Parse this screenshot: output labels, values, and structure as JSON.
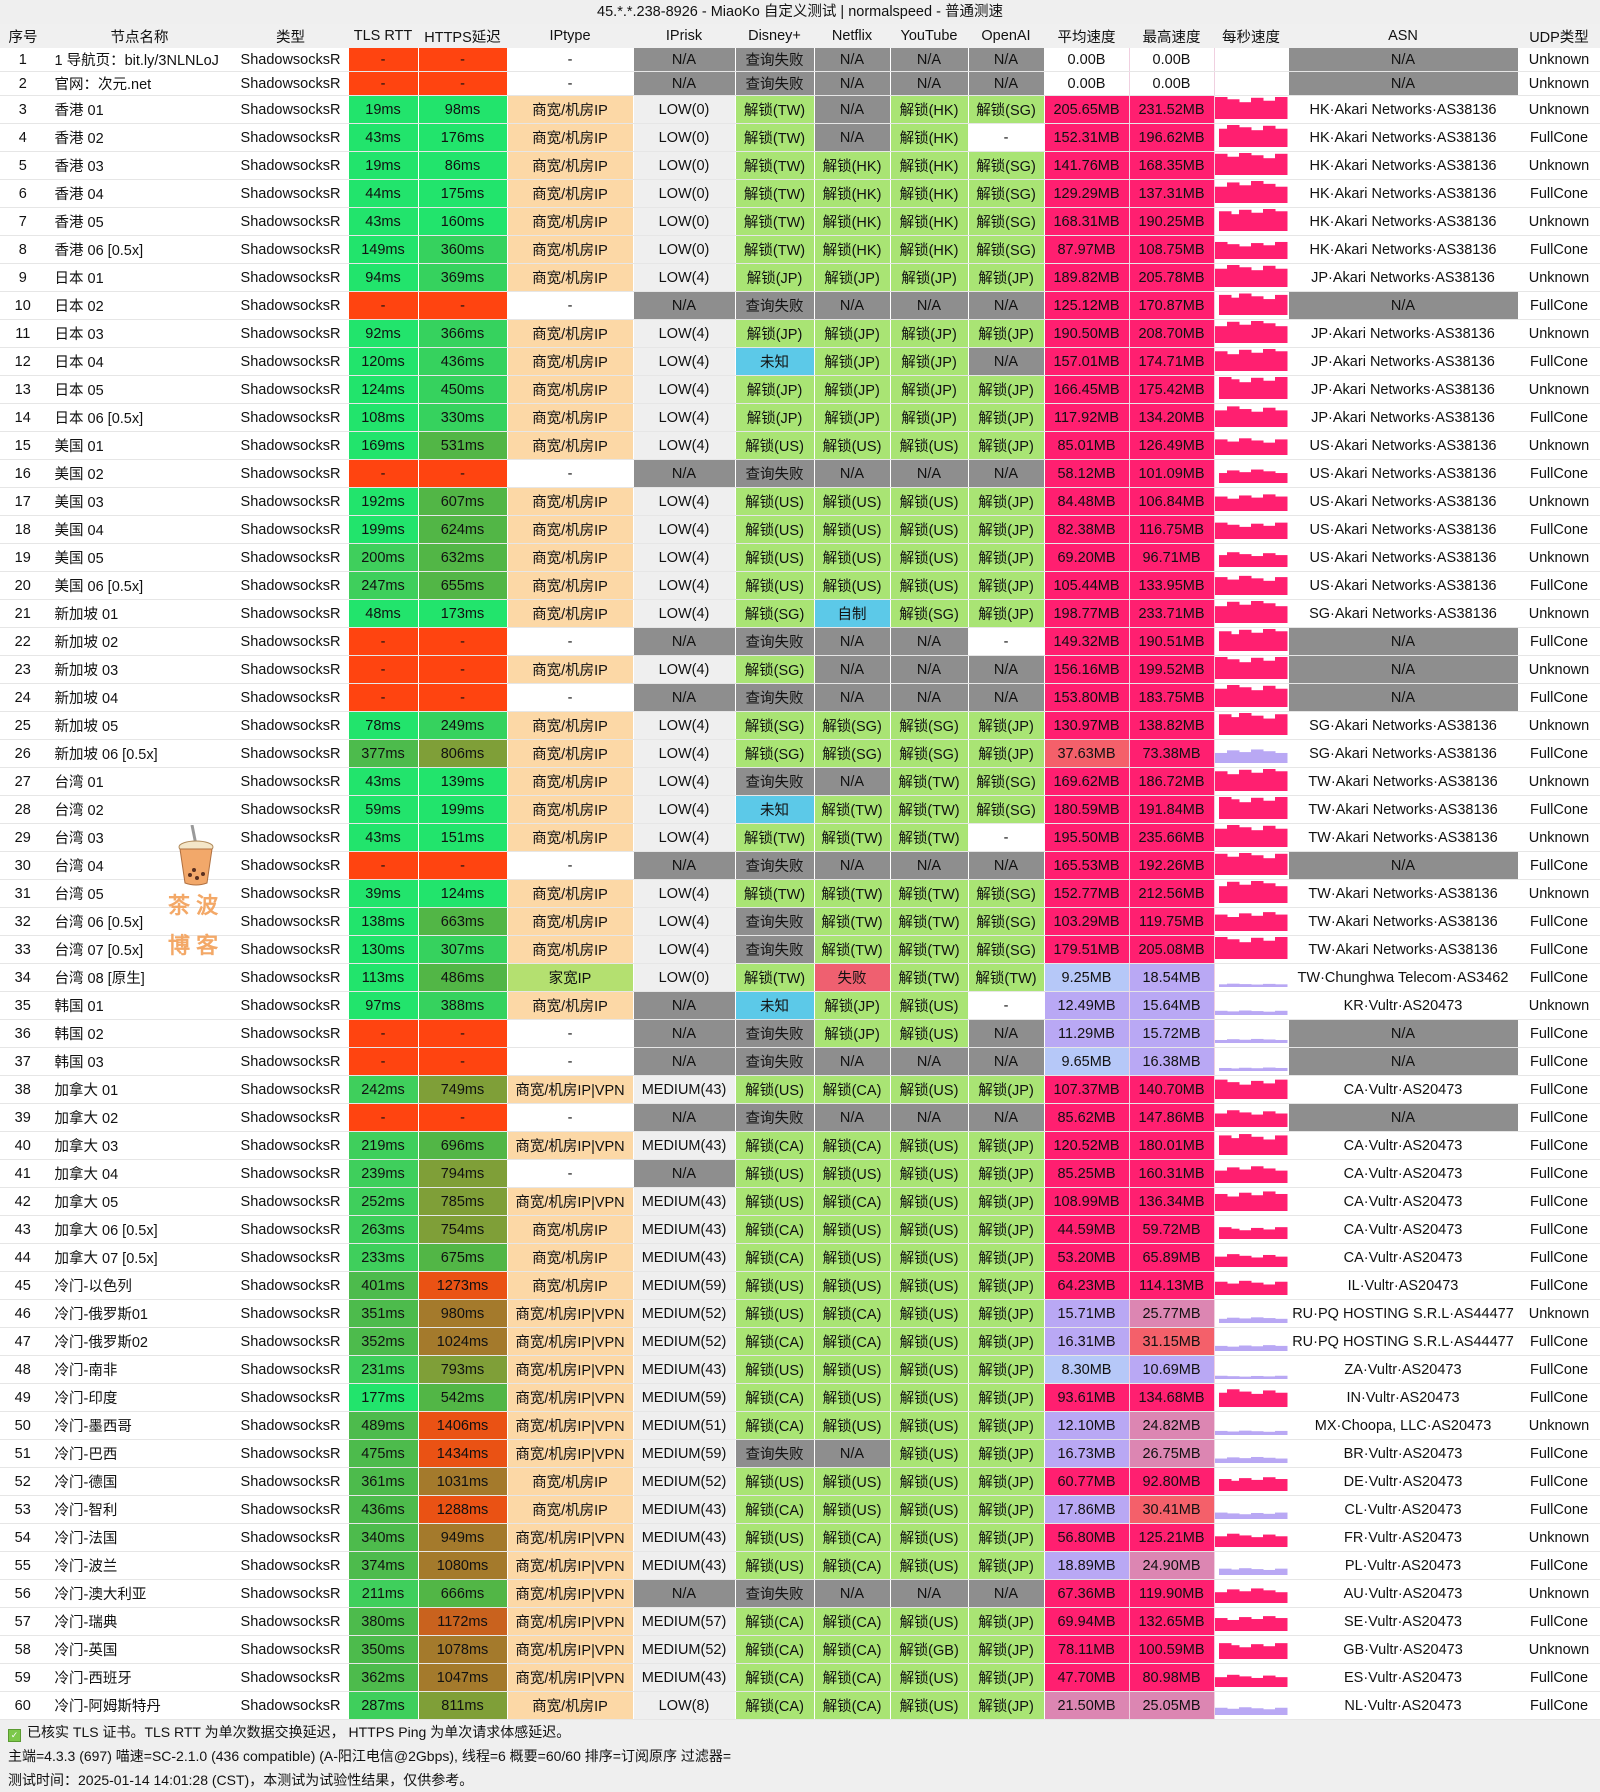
{
  "window": {
    "title": "45.*.*.238-8926 - MiaoKo 自定义测试 | normalspeed - 普通测速"
  },
  "columns": [
    "序号",
    "节点名称",
    "类型",
    "TLS RTT",
    "HTTPS延迟",
    "IPtype",
    "IPrisk",
    "Disney+",
    "Netflix",
    "YouTube",
    "OpenAI",
    "平均速度",
    "最高速度",
    "每秒速度",
    "ASN",
    "UDP类型"
  ],
  "colors": {
    "fail": "#ff4410",
    "unlock": "#a9e474",
    "na": "#8e8e8e",
    "unknown": "#5cc9e8",
    "failed_red": "#ef6070",
    "iptype_biz": "#fcd8a6",
    "iptype_home": "#b4e070",
    "risk": "#efefef",
    "speed_high": "#ff1f70"
  },
  "rows": [
    [
      "1",
      "1 导航页：bit.ly/3NLNLoJ",
      "ShadowsocksR",
      "-",
      "-",
      "-",
      "N/A",
      "查询失败",
      "N/A",
      "N/A",
      "N/A",
      "0.00B",
      "0.00B",
      "N/A",
      "Unknown"
    ],
    [
      "2",
      "官网：次元.net",
      "ShadowsocksR",
      "-",
      "-",
      "-",
      "N/A",
      "查询失败",
      "N/A",
      "N/A",
      "N/A",
      "0.00B",
      "0.00B",
      "N/A",
      "Unknown"
    ],
    [
      "3",
      "香港 01",
      "ShadowsocksR",
      "19ms",
      "98ms",
      "商宽/机房IP",
      "LOW(0)",
      "解锁(TW)",
      "N/A",
      "解锁(HK)",
      "解锁(SG)",
      "205.65MB",
      "231.52MB",
      "HK·Akari Networks·AS38136",
      "Unknown"
    ],
    [
      "4",
      "香港 02",
      "ShadowsocksR",
      "43ms",
      "176ms",
      "商宽/机房IP",
      "LOW(0)",
      "解锁(TW)",
      "N/A",
      "解锁(HK)",
      "-",
      "152.31MB",
      "196.62MB",
      "HK·Akari Networks·AS38136",
      "FullCone"
    ],
    [
      "5",
      "香港 03",
      "ShadowsocksR",
      "19ms",
      "86ms",
      "商宽/机房IP",
      "LOW(0)",
      "解锁(TW)",
      "解锁(HK)",
      "解锁(HK)",
      "解锁(SG)",
      "141.76MB",
      "168.35MB",
      "HK·Akari Networks·AS38136",
      "Unknown"
    ],
    [
      "6",
      "香港 04",
      "ShadowsocksR",
      "44ms",
      "175ms",
      "商宽/机房IP",
      "LOW(0)",
      "解锁(TW)",
      "解锁(HK)",
      "解锁(HK)",
      "解锁(SG)",
      "129.29MB",
      "137.31MB",
      "HK·Akari Networks·AS38136",
      "FullCone"
    ],
    [
      "7",
      "香港 05",
      "ShadowsocksR",
      "43ms",
      "160ms",
      "商宽/机房IP",
      "LOW(0)",
      "解锁(TW)",
      "解锁(HK)",
      "解锁(HK)",
      "解锁(SG)",
      "168.31MB",
      "190.25MB",
      "HK·Akari Networks·AS38136",
      "Unknown"
    ],
    [
      "8",
      "香港 06 [0.5x]",
      "ShadowsocksR",
      "149ms",
      "360ms",
      "商宽/机房IP",
      "LOW(0)",
      "解锁(TW)",
      "解锁(HK)",
      "解锁(HK)",
      "解锁(SG)",
      "87.97MB",
      "108.75MB",
      "HK·Akari Networks·AS38136",
      "FullCone"
    ],
    [
      "9",
      "日本 01",
      "ShadowsocksR",
      "94ms",
      "369ms",
      "商宽/机房IP",
      "LOW(4)",
      "解锁(JP)",
      "解锁(JP)",
      "解锁(JP)",
      "解锁(JP)",
      "189.82MB",
      "205.78MB",
      "JP·Akari Networks·AS38136",
      "Unknown"
    ],
    [
      "10",
      "日本 02",
      "ShadowsocksR",
      "-",
      "-",
      "-",
      "N/A",
      "查询失败",
      "N/A",
      "N/A",
      "N/A",
      "125.12MB",
      "170.87MB",
      "N/A",
      "FullCone"
    ],
    [
      "11",
      "日本 03",
      "ShadowsocksR",
      "92ms",
      "366ms",
      "商宽/机房IP",
      "LOW(4)",
      "解锁(JP)",
      "解锁(JP)",
      "解锁(JP)",
      "解锁(JP)",
      "190.50MB",
      "208.70MB",
      "JP·Akari Networks·AS38136",
      "Unknown"
    ],
    [
      "12",
      "日本 04",
      "ShadowsocksR",
      "120ms",
      "436ms",
      "商宽/机房IP",
      "LOW(4)",
      "未知",
      "解锁(JP)",
      "解锁(JP)",
      "N/A",
      "157.01MB",
      "174.71MB",
      "JP·Akari Networks·AS38136",
      "FullCone"
    ],
    [
      "13",
      "日本 05",
      "ShadowsocksR",
      "124ms",
      "450ms",
      "商宽/机房IP",
      "LOW(4)",
      "解锁(JP)",
      "解锁(JP)",
      "解锁(JP)",
      "解锁(JP)",
      "166.45MB",
      "175.42MB",
      "JP·Akari Networks·AS38136",
      "Unknown"
    ],
    [
      "14",
      "日本 06 [0.5x]",
      "ShadowsocksR",
      "108ms",
      "330ms",
      "商宽/机房IP",
      "LOW(4)",
      "解锁(JP)",
      "解锁(JP)",
      "解锁(JP)",
      "解锁(JP)",
      "117.92MB",
      "134.20MB",
      "JP·Akari Networks·AS38136",
      "FullCone"
    ],
    [
      "15",
      "美国 01",
      "ShadowsocksR",
      "169ms",
      "531ms",
      "商宽/机房IP",
      "LOW(4)",
      "解锁(US)",
      "解锁(US)",
      "解锁(US)",
      "解锁(JP)",
      "85.01MB",
      "126.49MB",
      "US·Akari Networks·AS38136",
      "Unknown"
    ],
    [
      "16",
      "美国 02",
      "ShadowsocksR",
      "-",
      "-",
      "-",
      "N/A",
      "查询失败",
      "N/A",
      "N/A",
      "N/A",
      "58.12MB",
      "101.09MB",
      "US·Akari Networks·AS38136",
      "FullCone"
    ],
    [
      "17",
      "美国 03",
      "ShadowsocksR",
      "192ms",
      "607ms",
      "商宽/机房IP",
      "LOW(4)",
      "解锁(US)",
      "解锁(US)",
      "解锁(US)",
      "解锁(JP)",
      "84.48MB",
      "106.84MB",
      "US·Akari Networks·AS38136",
      "Unknown"
    ],
    [
      "18",
      "美国 04",
      "ShadowsocksR",
      "199ms",
      "624ms",
      "商宽/机房IP",
      "LOW(4)",
      "解锁(US)",
      "解锁(US)",
      "解锁(US)",
      "解锁(JP)",
      "82.38MB",
      "116.75MB",
      "US·Akari Networks·AS38136",
      "FullCone"
    ],
    [
      "19",
      "美国 05",
      "ShadowsocksR",
      "200ms",
      "632ms",
      "商宽/机房IP",
      "LOW(4)",
      "解锁(US)",
      "解锁(US)",
      "解锁(US)",
      "解锁(JP)",
      "69.20MB",
      "96.71MB",
      "US·Akari Networks·AS38136",
      "Unknown"
    ],
    [
      "20",
      "美国 06 [0.5x]",
      "ShadowsocksR",
      "247ms",
      "655ms",
      "商宽/机房IP",
      "LOW(4)",
      "解锁(US)",
      "解锁(US)",
      "解锁(US)",
      "解锁(JP)",
      "105.44MB",
      "133.95MB",
      "US·Akari Networks·AS38136",
      "FullCone"
    ],
    [
      "21",
      "新加坡 01",
      "ShadowsocksR",
      "48ms",
      "173ms",
      "商宽/机房IP",
      "LOW(4)",
      "解锁(SG)",
      "自制",
      "解锁(SG)",
      "解锁(JP)",
      "198.77MB",
      "233.71MB",
      "SG·Akari Networks·AS38136",
      "Unknown"
    ],
    [
      "22",
      "新加坡 02",
      "ShadowsocksR",
      "-",
      "-",
      "-",
      "N/A",
      "查询失败",
      "N/A",
      "N/A",
      "-",
      "149.32MB",
      "190.51MB",
      "N/A",
      "FullCone"
    ],
    [
      "23",
      "新加坡 03",
      "ShadowsocksR",
      "-",
      "-",
      "商宽/机房IP",
      "LOW(4)",
      "解锁(SG)",
      "N/A",
      "N/A",
      "N/A",
      "156.16MB",
      "199.52MB",
      "N/A",
      "Unknown"
    ],
    [
      "24",
      "新加坡 04",
      "ShadowsocksR",
      "-",
      "-",
      "-",
      "N/A",
      "查询失败",
      "N/A",
      "N/A",
      "N/A",
      "153.80MB",
      "183.75MB",
      "N/A",
      "FullCone"
    ],
    [
      "25",
      "新加坡 05",
      "ShadowsocksR",
      "78ms",
      "249ms",
      "商宽/机房IP",
      "LOW(4)",
      "解锁(SG)",
      "解锁(SG)",
      "解锁(SG)",
      "解锁(JP)",
      "130.97MB",
      "138.82MB",
      "SG·Akari Networks·AS38136",
      "Unknown"
    ],
    [
      "26",
      "新加坡 06 [0.5x]",
      "ShadowsocksR",
      "377ms",
      "806ms",
      "商宽/机房IP",
      "LOW(4)",
      "解锁(SG)",
      "解锁(SG)",
      "解锁(SG)",
      "解锁(JP)",
      "37.63MB",
      "73.38MB",
      "SG·Akari Networks·AS38136",
      "FullCone"
    ],
    [
      "27",
      "台湾 01",
      "ShadowsocksR",
      "43ms",
      "139ms",
      "商宽/机房IP",
      "LOW(4)",
      "查询失败",
      "N/A",
      "解锁(TW)",
      "解锁(SG)",
      "169.62MB",
      "186.72MB",
      "TW·Akari Networks·AS38136",
      "Unknown"
    ],
    [
      "28",
      "台湾 02",
      "ShadowsocksR",
      "59ms",
      "199ms",
      "商宽/机房IP",
      "LOW(4)",
      "未知",
      "解锁(TW)",
      "解锁(TW)",
      "解锁(SG)",
      "180.59MB",
      "191.84MB",
      "TW·Akari Networks·AS38136",
      "FullCone"
    ],
    [
      "29",
      "台湾 03",
      "ShadowsocksR",
      "43ms",
      "151ms",
      "商宽/机房IP",
      "LOW(4)",
      "解锁(TW)",
      "解锁(TW)",
      "解锁(TW)",
      "-",
      "195.50MB",
      "235.66MB",
      "TW·Akari Networks·AS38136",
      "Unknown"
    ],
    [
      "30",
      "台湾 04",
      "ShadowsocksR",
      "-",
      "-",
      "-",
      "N/A",
      "查询失败",
      "N/A",
      "N/A",
      "N/A",
      "165.53MB",
      "192.26MB",
      "N/A",
      "FullCone"
    ],
    [
      "31",
      "台湾 05",
      "ShadowsocksR",
      "39ms",
      "124ms",
      "商宽/机房IP",
      "LOW(4)",
      "解锁(TW)",
      "解锁(TW)",
      "解锁(TW)",
      "解锁(SG)",
      "152.77MB",
      "212.56MB",
      "TW·Akari Networks·AS38136",
      "Unknown"
    ],
    [
      "32",
      "台湾 06 [0.5x]",
      "ShadowsocksR",
      "138ms",
      "663ms",
      "商宽/机房IP",
      "LOW(4)",
      "查询失败",
      "解锁(TW)",
      "解锁(TW)",
      "解锁(SG)",
      "103.29MB",
      "119.75MB",
      "TW·Akari Networks·AS38136",
      "FullCone"
    ],
    [
      "33",
      "台湾 07 [0.5x]",
      "ShadowsocksR",
      "130ms",
      "307ms",
      "商宽/机房IP",
      "LOW(4)",
      "查询失败",
      "解锁(TW)",
      "解锁(TW)",
      "解锁(SG)",
      "179.51MB",
      "205.08MB",
      "TW·Akari Networks·AS38136",
      "FullCone"
    ],
    [
      "34",
      "台湾 08 [原生]",
      "ShadowsocksR",
      "113ms",
      "486ms",
      "家宽IP",
      "LOW(0)",
      "解锁(TW)",
      "失败",
      "解锁(TW)",
      "解锁(TW)",
      "9.25MB",
      "18.54MB",
      "TW·Chunghwa Telecom·AS3462",
      "FullCone"
    ],
    [
      "35",
      "韩国 01",
      "ShadowsocksR",
      "97ms",
      "388ms",
      "商宽/机房IP",
      "N/A",
      "未知",
      "解锁(JP)",
      "解锁(US)",
      "-",
      "12.49MB",
      "15.64MB",
      "KR·Vultr·AS20473",
      "Unknown"
    ],
    [
      "36",
      "韩国 02",
      "ShadowsocksR",
      "-",
      "-",
      "-",
      "N/A",
      "查询失败",
      "解锁(JP)",
      "解锁(US)",
      "N/A",
      "11.29MB",
      "15.72MB",
      "N/A",
      "FullCone"
    ],
    [
      "37",
      "韩国 03",
      "ShadowsocksR",
      "-",
      "-",
      "-",
      "N/A",
      "查询失败",
      "N/A",
      "N/A",
      "N/A",
      "9.65MB",
      "16.38MB",
      "N/A",
      "FullCone"
    ],
    [
      "38",
      "加拿大 01",
      "ShadowsocksR",
      "242ms",
      "749ms",
      "商宽/机房IP|VPN",
      "MEDIUM(43)",
      "解锁(US)",
      "解锁(CA)",
      "解锁(US)",
      "解锁(JP)",
      "107.37MB",
      "140.70MB",
      "CA·Vultr·AS20473",
      "FullCone"
    ],
    [
      "39",
      "加拿大 02",
      "ShadowsocksR",
      "-",
      "-",
      "-",
      "N/A",
      "查询失败",
      "N/A",
      "N/A",
      "N/A",
      "85.62MB",
      "147.86MB",
      "N/A",
      "FullCone"
    ],
    [
      "40",
      "加拿大 03",
      "ShadowsocksR",
      "219ms",
      "696ms",
      "商宽/机房IP|VPN",
      "MEDIUM(43)",
      "解锁(CA)",
      "解锁(CA)",
      "解锁(US)",
      "解锁(JP)",
      "120.52MB",
      "180.01MB",
      "CA·Vultr·AS20473",
      "FullCone"
    ],
    [
      "41",
      "加拿大 04",
      "ShadowsocksR",
      "239ms",
      "794ms",
      "-",
      "N/A",
      "解锁(US)",
      "解锁(US)",
      "解锁(US)",
      "解锁(JP)",
      "85.25MB",
      "160.31MB",
      "CA·Vultr·AS20473",
      "FullCone"
    ],
    [
      "42",
      "加拿大 05",
      "ShadowsocksR",
      "252ms",
      "785ms",
      "商宽/机房IP|VPN",
      "MEDIUM(43)",
      "解锁(US)",
      "解锁(CA)",
      "解锁(US)",
      "解锁(JP)",
      "108.99MB",
      "136.34MB",
      "CA·Vultr·AS20473",
      "FullCone"
    ],
    [
      "43",
      "加拿大 06 [0.5x]",
      "ShadowsocksR",
      "263ms",
      "754ms",
      "商宽/机房IP",
      "MEDIUM(43)",
      "解锁(CA)",
      "解锁(US)",
      "解锁(US)",
      "解锁(JP)",
      "44.59MB",
      "59.72MB",
      "CA·Vultr·AS20473",
      "FullCone"
    ],
    [
      "44",
      "加拿大 07 [0.5x]",
      "ShadowsocksR",
      "233ms",
      "675ms",
      "商宽/机房IP",
      "MEDIUM(43)",
      "解锁(CA)",
      "解锁(US)",
      "解锁(US)",
      "解锁(JP)",
      "53.20MB",
      "65.89MB",
      "CA·Vultr·AS20473",
      "FullCone"
    ],
    [
      "45",
      "冷门-以色列",
      "ShadowsocksR",
      "401ms",
      "1273ms",
      "商宽/机房IP",
      "MEDIUM(59)",
      "解锁(US)",
      "解锁(US)",
      "解锁(US)",
      "解锁(JP)",
      "64.23MB",
      "114.13MB",
      "IL·Vultr·AS20473",
      "FullCone"
    ],
    [
      "46",
      "冷门-俄罗斯01",
      "ShadowsocksR",
      "351ms",
      "980ms",
      "商宽/机房IP|VPN",
      "MEDIUM(52)",
      "解锁(US)",
      "解锁(CA)",
      "解锁(US)",
      "解锁(JP)",
      "15.71MB",
      "25.77MB",
      "RU·PQ HOSTING S.R.L·AS44477",
      "Unknown"
    ],
    [
      "47",
      "冷门-俄罗斯02",
      "ShadowsocksR",
      "352ms",
      "1024ms",
      "商宽/机房IP|VPN",
      "MEDIUM(52)",
      "解锁(CA)",
      "解锁(CA)",
      "解锁(US)",
      "解锁(JP)",
      "16.31MB",
      "31.15MB",
      "RU·PQ HOSTING S.R.L·AS44477",
      "FullCone"
    ],
    [
      "48",
      "冷门-南非",
      "ShadowsocksR",
      "231ms",
      "793ms",
      "商宽/机房IP|VPN",
      "MEDIUM(43)",
      "解锁(US)",
      "解锁(US)",
      "解锁(US)",
      "解锁(JP)",
      "8.30MB",
      "10.69MB",
      "ZA·Vultr·AS20473",
      "FullCone"
    ],
    [
      "49",
      "冷门-印度",
      "ShadowsocksR",
      "177ms",
      "542ms",
      "商宽/机房IP|VPN",
      "MEDIUM(59)",
      "解锁(CA)",
      "解锁(US)",
      "解锁(US)",
      "解锁(JP)",
      "93.61MB",
      "134.68MB",
      "IN·Vultr·AS20473",
      "FullCone"
    ],
    [
      "50",
      "冷门-墨西哥",
      "ShadowsocksR",
      "489ms",
      "1406ms",
      "商宽/机房IP|VPN",
      "MEDIUM(51)",
      "解锁(CA)",
      "解锁(US)",
      "解锁(US)",
      "解锁(JP)",
      "12.10MB",
      "24.82MB",
      "MX·Choopa, LLC·AS20473",
      "Unknown"
    ],
    [
      "51",
      "冷门-巴西",
      "ShadowsocksR",
      "475ms",
      "1434ms",
      "商宽/机房IP|VPN",
      "MEDIUM(59)",
      "查询失败",
      "N/A",
      "解锁(US)",
      "解锁(JP)",
      "16.73MB",
      "26.75MB",
      "BR·Vultr·AS20473",
      "FullCone"
    ],
    [
      "52",
      "冷门-德国",
      "ShadowsocksR",
      "361ms",
      "1031ms",
      "商宽/机房IP",
      "MEDIUM(52)",
      "解锁(US)",
      "解锁(US)",
      "解锁(US)",
      "解锁(JP)",
      "60.77MB",
      "92.80MB",
      "DE·Vultr·AS20473",
      "FullCone"
    ],
    [
      "53",
      "冷门-智利",
      "ShadowsocksR",
      "436ms",
      "1288ms",
      "商宽/机房IP",
      "MEDIUM(43)",
      "解锁(CA)",
      "解锁(US)",
      "解锁(US)",
      "解锁(JP)",
      "17.86MB",
      "30.41MB",
      "CL·Vultr·AS20473",
      "FullCone"
    ],
    [
      "54",
      "冷门-法国",
      "ShadowsocksR",
      "340ms",
      "949ms",
      "商宽/机房IP|VPN",
      "MEDIUM(43)",
      "解锁(US)",
      "解锁(CA)",
      "解锁(US)",
      "解锁(JP)",
      "56.80MB",
      "125.21MB",
      "FR·Vultr·AS20473",
      "Unknown"
    ],
    [
      "55",
      "冷门-波兰",
      "ShadowsocksR",
      "374ms",
      "1080ms",
      "商宽/机房IP|VPN",
      "MEDIUM(43)",
      "解锁(US)",
      "解锁(CA)",
      "解锁(US)",
      "解锁(JP)",
      "18.89MB",
      "24.90MB",
      "PL·Vultr·AS20473",
      "FullCone"
    ],
    [
      "56",
      "冷门-澳大利亚",
      "ShadowsocksR",
      "211ms",
      "666ms",
      "商宽/机房IP|VPN",
      "N/A",
      "查询失败",
      "N/A",
      "N/A",
      "N/A",
      "67.36MB",
      "119.90MB",
      "AU·Vultr·AS20473",
      "Unknown"
    ],
    [
      "57",
      "冷门-瑞典",
      "ShadowsocksR",
      "380ms",
      "1172ms",
      "商宽/机房IP|VPN",
      "MEDIUM(57)",
      "解锁(CA)",
      "解锁(CA)",
      "解锁(US)",
      "解锁(JP)",
      "69.94MB",
      "132.65MB",
      "SE·Vultr·AS20473",
      "FullCone"
    ],
    [
      "58",
      "冷门-英国",
      "ShadowsocksR",
      "350ms",
      "1078ms",
      "商宽/机房IP|VPN",
      "MEDIUM(52)",
      "解锁(CA)",
      "解锁(CA)",
      "解锁(GB)",
      "解锁(JP)",
      "78.11MB",
      "100.59MB",
      "GB·Vultr·AS20473",
      "Unknown"
    ],
    [
      "59",
      "冷门-西班牙",
      "ShadowsocksR",
      "362ms",
      "1047ms",
      "商宽/机房IP|VPN",
      "MEDIUM(43)",
      "解锁(CA)",
      "解锁(CA)",
      "解锁(US)",
      "解锁(JP)",
      "47.70MB",
      "80.98MB",
      "ES·Vultr·AS20473",
      "FullCone"
    ],
    [
      "60",
      "冷门-阿姆斯特丹",
      "ShadowsocksR",
      "287ms",
      "811ms",
      "商宽/机房IP",
      "LOW(8)",
      "解锁(CA)",
      "解锁(CA)",
      "解锁(US)",
      "解锁(JP)",
      "21.50MB",
      "25.05MB",
      "NL·Vultr·AS20473",
      "FullCone"
    ]
  ],
  "footer": {
    "line1": "已核实 TLS 证书。TLS RTT 为单次数据交换延迟， HTTPS Ping 为单次请求体感延迟。",
    "line2": "主端=4.3.3 (697) 喵速=SC-2.1.0 (436 compatible) (A-阳江电信@2Gbps), 线程=6 概要=60/60 排序=订阅原序 过滤器=",
    "line3": "测试时间：2025-01-14 14:01:28 (CST)，本测试为试验性结果，仅供参考。"
  },
  "watermark": {
    "logo_text_1": "茶 波",
    "logo_text_2": "博 客"
  }
}
